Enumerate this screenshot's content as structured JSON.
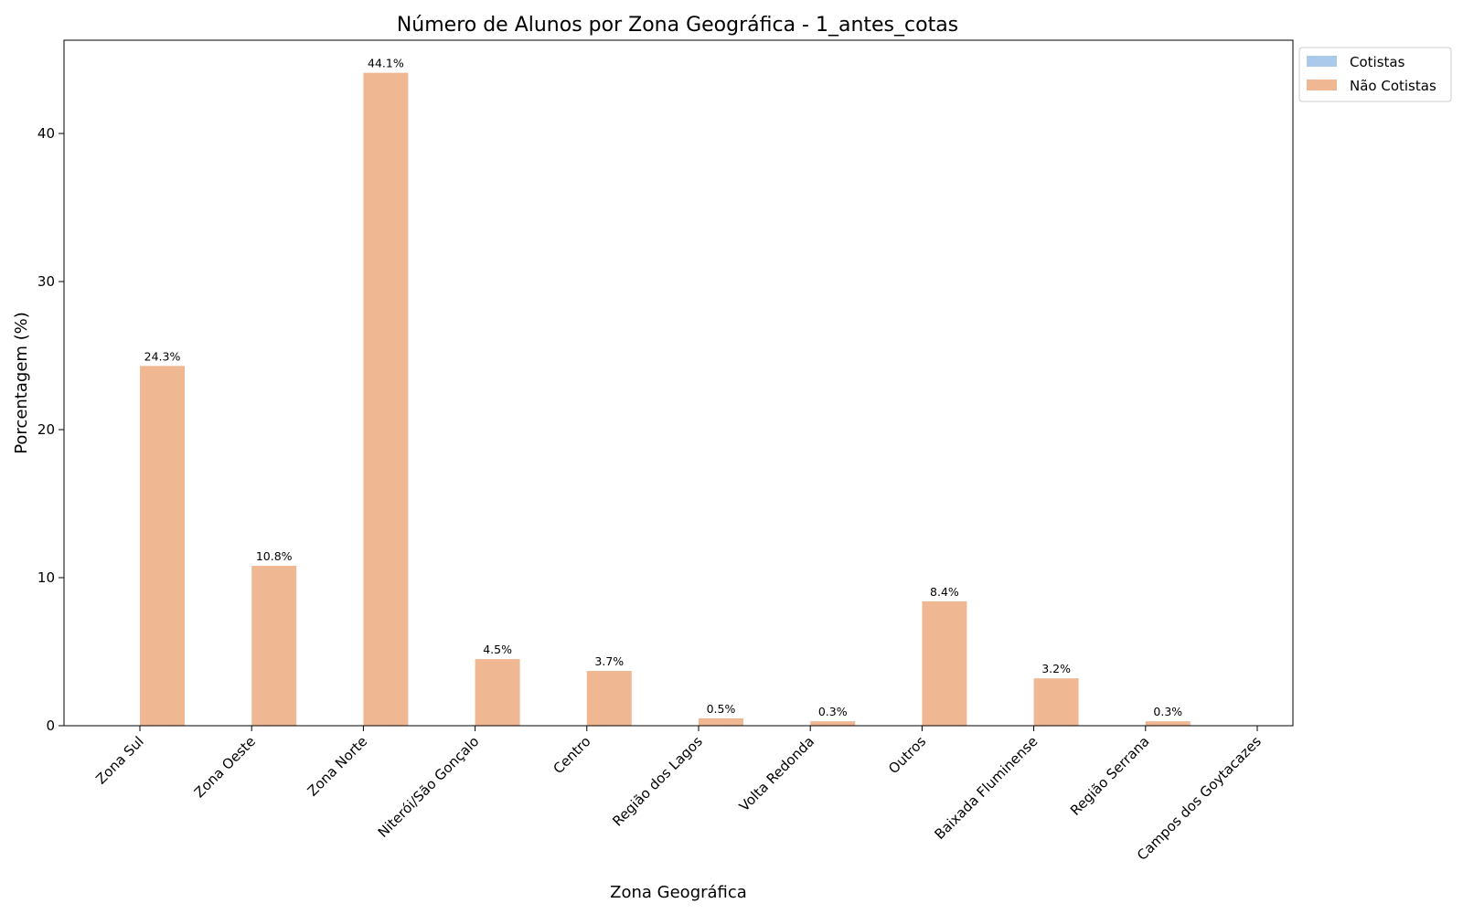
{
  "chart_data": {
    "type": "bar",
    "title": "Número de Alunos por Zona Geográfica - 1_antes_cotas",
    "xlabel": "Zona Geográfica",
    "ylabel": "Porcentagem (%)",
    "ylim": [
      0,
      46.3
    ],
    "yticks": [
      0,
      10,
      20,
      30,
      40
    ],
    "grid": false,
    "legend_position": "upper-right-outside",
    "categories": [
      "Zona Sul",
      "Zona Oeste",
      "Zona Norte",
      "Niterói/São Gonçalo",
      "Centro",
      "Região dos Lagos",
      "Volta Redonda",
      "Outros",
      "Baixada Fluminense",
      "Região Serrana",
      "Campos dos Goytacazes"
    ],
    "series": [
      {
        "name": "Cotistas",
        "color": "#abc9ea",
        "values": [
          0,
          0,
          0,
          0,
          0,
          0,
          0,
          0,
          0,
          0,
          0
        ],
        "labels": [
          "",
          "",
          "",
          "",
          "",
          "",
          "",
          "",
          "",
          "",
          ""
        ]
      },
      {
        "name": "Não Cotistas",
        "color": "#efb792",
        "values": [
          24.3,
          10.8,
          44.1,
          4.5,
          3.7,
          0.5,
          0.3,
          8.4,
          3.2,
          0.3,
          0
        ],
        "labels": [
          "24.3%",
          "10.8%",
          "44.1%",
          "4.5%",
          "3.7%",
          "0.5%",
          "0.3%",
          "8.4%",
          "3.2%",
          "0.3%",
          ""
        ]
      }
    ]
  }
}
